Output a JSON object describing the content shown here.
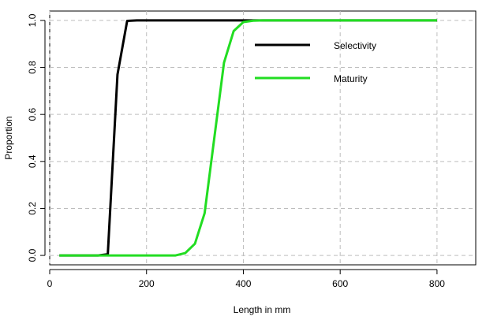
{
  "chart_data": {
    "type": "line",
    "title": "",
    "xlabel": "Length in mm",
    "ylabel": "Proportion",
    "xlim": [
      0,
      880
    ],
    "ylim": [
      -0.04,
      1.04
    ],
    "xticks": [
      0,
      200,
      400,
      600,
      800
    ],
    "yticks": [
      0.0,
      0.2,
      0.4,
      0.6,
      0.8,
      1.0
    ],
    "xtick_labels": [
      "0",
      "200",
      "400",
      "600",
      "800"
    ],
    "ytick_labels": [
      "0.0",
      "0.2",
      "0.4",
      "0.6",
      "0.8",
      "1.0"
    ],
    "grid": true,
    "legend_position": "top-right",
    "series": [
      {
        "name": "Selectivity",
        "color": "#000000",
        "x": [
          20,
          100,
          120,
          140,
          160,
          180,
          200,
          400,
          800
        ],
        "y": [
          0,
          0,
          0.005,
          0.77,
          0.998,
          1,
          1,
          1,
          1
        ]
      },
      {
        "name": "Maturity",
        "color": "#22dd22",
        "x": [
          20,
          200,
          260,
          280,
          300,
          320,
          340,
          360,
          380,
          400,
          420,
          440,
          800
        ],
        "y": [
          0,
          0,
          0,
          0.01,
          0.05,
          0.18,
          0.5,
          0.82,
          0.955,
          0.993,
          0.999,
          1,
          1
        ]
      }
    ]
  }
}
